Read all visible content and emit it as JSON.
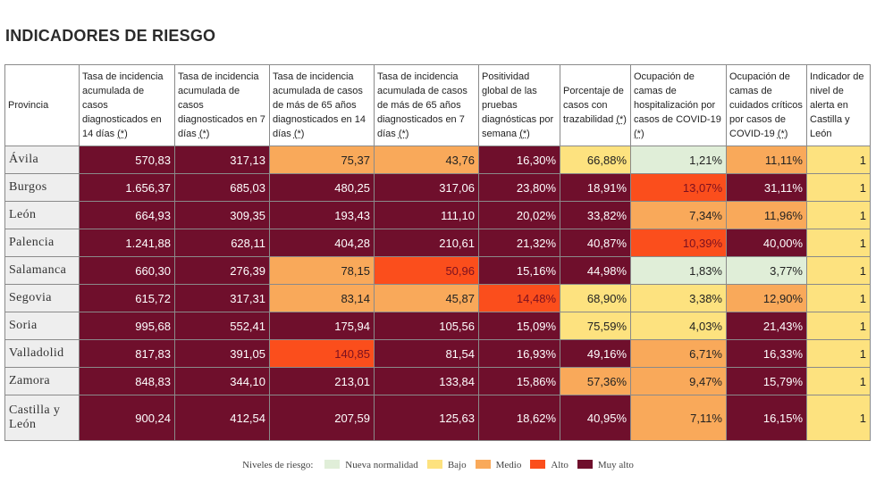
{
  "title": "INDICADORES DE RIESGO",
  "asterisk": "(*)",
  "columns": [
    {
      "label": "Provincia",
      "asterisk": false
    },
    {
      "label": "Tasa de incidencia acumulada de casos diagnosticados en 14 días ",
      "asterisk": true
    },
    {
      "label": "Tasa de incidencia acumulada de casos diagnosticados en 7 días ",
      "asterisk": true
    },
    {
      "label": "Tasa de incidencia acumulada de casos de más de 65 años diagnosticados en 14 días ",
      "asterisk": true
    },
    {
      "label": "Tasa de incidencia acumulada de casos de más de 65 años diagnosticados en 7 días ",
      "asterisk": true
    },
    {
      "label": "Positividad global de las pruebas diagnósticas por semana ",
      "asterisk": true
    },
    {
      "label": "Porcentaje de casos con trazabilidad ",
      "asterisk": true
    },
    {
      "label": "Ocupación de camas de hospitalización por casos de COVID-19 ",
      "asterisk": true
    },
    {
      "label": "Ocupación de camas de cuidados críticos por casos de COVID-19 ",
      "asterisk": true
    },
    {
      "label": "Indicador de nivel de alerta en Castilla y León",
      "asterisk": false
    }
  ],
  "rows": [
    {
      "provincia": "Ávila",
      "cells": [
        {
          "value": "570,83",
          "level": "MA"
        },
        {
          "value": "317,13",
          "level": "MA"
        },
        {
          "value": "75,37",
          "level": "M"
        },
        {
          "value": "43,76",
          "level": "M"
        },
        {
          "value": "16,30%",
          "level": "MA"
        },
        {
          "value": "66,88%",
          "level": "B"
        },
        {
          "value": "1,21%",
          "level": "NN"
        },
        {
          "value": "11,11%",
          "level": "M"
        },
        {
          "value": "1",
          "level": "B"
        }
      ]
    },
    {
      "provincia": "Burgos",
      "cells": [
        {
          "value": "1.656,37",
          "level": "MA"
        },
        {
          "value": "685,03",
          "level": "MA"
        },
        {
          "value": "480,25",
          "level": "MA"
        },
        {
          "value": "317,06",
          "level": "MA"
        },
        {
          "value": "23,80%",
          "level": "MA"
        },
        {
          "value": "18,91%",
          "level": "MA"
        },
        {
          "value": "13,07%",
          "level": "A"
        },
        {
          "value": "31,11%",
          "level": "MA"
        },
        {
          "value": "1",
          "level": "B"
        }
      ]
    },
    {
      "provincia": "León",
      "cells": [
        {
          "value": "664,93",
          "level": "MA"
        },
        {
          "value": "309,35",
          "level": "MA"
        },
        {
          "value": "193,43",
          "level": "MA"
        },
        {
          "value": "111,10",
          "level": "MA"
        },
        {
          "value": "20,02%",
          "level": "MA"
        },
        {
          "value": "33,82%",
          "level": "MA"
        },
        {
          "value": "7,34%",
          "level": "M"
        },
        {
          "value": "11,96%",
          "level": "M"
        },
        {
          "value": "1",
          "level": "B"
        }
      ]
    },
    {
      "provincia": "Palencia",
      "cells": [
        {
          "value": "1.241,88",
          "level": "MA"
        },
        {
          "value": "628,11",
          "level": "MA"
        },
        {
          "value": "404,28",
          "level": "MA"
        },
        {
          "value": "210,61",
          "level": "MA"
        },
        {
          "value": "21,32%",
          "level": "MA"
        },
        {
          "value": "40,87%",
          "level": "MA"
        },
        {
          "value": "10,39%",
          "level": "A"
        },
        {
          "value": "40,00%",
          "level": "MA"
        },
        {
          "value": "1",
          "level": "B"
        }
      ]
    },
    {
      "provincia": "Salamanca",
      "cells": [
        {
          "value": "660,30",
          "level": "MA"
        },
        {
          "value": "276,39",
          "level": "MA"
        },
        {
          "value": "78,15",
          "level": "M"
        },
        {
          "value": "50,96",
          "level": "A"
        },
        {
          "value": "15,16%",
          "level": "MA"
        },
        {
          "value": "44,98%",
          "level": "MA"
        },
        {
          "value": "1,83%",
          "level": "NN"
        },
        {
          "value": "3,77%",
          "level": "NN"
        },
        {
          "value": "1",
          "level": "B"
        }
      ]
    },
    {
      "provincia": "Segovia",
      "cells": [
        {
          "value": "615,72",
          "level": "MA"
        },
        {
          "value": "317,31",
          "level": "MA"
        },
        {
          "value": "83,14",
          "level": "M"
        },
        {
          "value": "45,87",
          "level": "M"
        },
        {
          "value": "14,48%",
          "level": "A"
        },
        {
          "value": "68,90%",
          "level": "B"
        },
        {
          "value": "3,38%",
          "level": "B"
        },
        {
          "value": "12,90%",
          "level": "M"
        },
        {
          "value": "1",
          "level": "B"
        }
      ]
    },
    {
      "provincia": "Soria",
      "cells": [
        {
          "value": "995,68",
          "level": "MA"
        },
        {
          "value": "552,41",
          "level": "MA"
        },
        {
          "value": "175,94",
          "level": "MA"
        },
        {
          "value": "105,56",
          "level": "MA"
        },
        {
          "value": "15,09%",
          "level": "MA"
        },
        {
          "value": "75,59%",
          "level": "B"
        },
        {
          "value": "4,03%",
          "level": "B"
        },
        {
          "value": "21,43%",
          "level": "MA"
        },
        {
          "value": "1",
          "level": "B"
        }
      ]
    },
    {
      "provincia": "Valladolid",
      "cells": [
        {
          "value": "817,83",
          "level": "MA"
        },
        {
          "value": "391,05",
          "level": "MA"
        },
        {
          "value": "140,85",
          "level": "A"
        },
        {
          "value": "81,54",
          "level": "MA"
        },
        {
          "value": "16,93%",
          "level": "MA"
        },
        {
          "value": "49,16%",
          "level": "MA"
        },
        {
          "value": "6,71%",
          "level": "M"
        },
        {
          "value": "16,33%",
          "level": "MA"
        },
        {
          "value": "1",
          "level": "B"
        }
      ]
    },
    {
      "provincia": "Zamora",
      "cells": [
        {
          "value": "848,83",
          "level": "MA"
        },
        {
          "value": "344,10",
          "level": "MA"
        },
        {
          "value": "213,01",
          "level": "MA"
        },
        {
          "value": "133,84",
          "level": "MA"
        },
        {
          "value": "15,86%",
          "level": "MA"
        },
        {
          "value": "57,36%",
          "level": "M"
        },
        {
          "value": "9,47%",
          "level": "M"
        },
        {
          "value": "15,79%",
          "level": "MA"
        },
        {
          "value": "1",
          "level": "B"
        }
      ]
    },
    {
      "provincia": "Castilla y León",
      "tall": true,
      "cells": [
        {
          "value": "900,24",
          "level": "MA"
        },
        {
          "value": "412,54",
          "level": "MA"
        },
        {
          "value": "207,59",
          "level": "MA"
        },
        {
          "value": "125,63",
          "level": "MA"
        },
        {
          "value": "18,62%",
          "level": "MA"
        },
        {
          "value": "40,95%",
          "level": "MA"
        },
        {
          "value": "7,11%",
          "level": "M"
        },
        {
          "value": "16,15%",
          "level": "MA"
        },
        {
          "value": "1",
          "level": "B"
        }
      ]
    }
  ],
  "legend": {
    "label": "Niveles de riesgo:",
    "items": [
      {
        "key": "NN",
        "label": "Nueva normalidad",
        "color": "#e0eed8"
      },
      {
        "key": "B",
        "label": "Bajo",
        "color": "#fde27f"
      },
      {
        "key": "M",
        "label": "Medio",
        "color": "#f9a95a"
      },
      {
        "key": "A",
        "label": "Alto",
        "color": "#fb4e1c"
      },
      {
        "key": "MA",
        "label": "Muy alto",
        "color": "#6f0f2c"
      }
    ]
  }
}
